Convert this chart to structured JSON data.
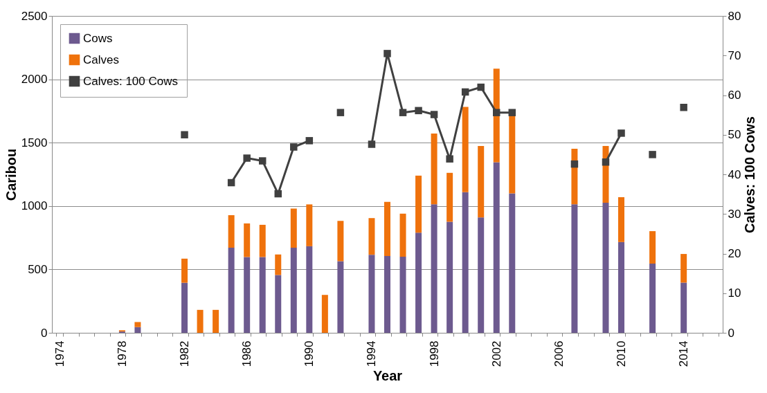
{
  "chart_data": {
    "type": "bar",
    "stacked": true,
    "xlabel": "Year",
    "ylabel": "Caribou",
    "y2label": "Calves: 100 Cows",
    "categories": [
      "1974",
      null,
      null,
      null,
      "1978",
      null,
      null,
      null,
      "1982",
      null,
      null,
      null,
      "1986",
      null,
      null,
      null,
      "1990",
      null,
      null,
      null,
      "1994",
      null,
      null,
      null,
      "1998",
      null,
      null,
      null,
      "2002",
      null,
      null,
      null,
      "2006",
      null,
      null,
      null,
      "2010",
      null,
      null,
      null,
      "2014",
      null,
      null
    ],
    "series": [
      {
        "name": "Cows",
        "color": "#6d5a8f",
        "values": [
          null,
          null,
          null,
          null,
          10,
          45,
          null,
          null,
          395,
          null,
          null,
          671,
          598,
          598,
          456,
          671,
          683,
          null,
          565,
          null,
          616,
          606,
          600,
          790,
          1014,
          876,
          1110,
          910,
          1346,
          1100,
          null,
          null,
          null,
          1014,
          null,
          1026,
          716,
          null,
          546,
          null,
          396,
          null,
          null
        ]
      },
      {
        "name": "Calves",
        "color": "#ef720c",
        "values": [
          null,
          null,
          null,
          null,
          10,
          40,
          null,
          null,
          190,
          181,
          181,
          257,
          265,
          254,
          162,
          309,
          330,
          299,
          318,
          null,
          289,
          427,
          340,
          450,
          558,
          386,
          672,
          564,
          738,
          620,
          null,
          null,
          null,
          438,
          null,
          448,
          354,
          null,
          256,
          null,
          226,
          null,
          null
        ]
      },
      {
        "name": "Calves: 100 Cows",
        "type": "line",
        "axis": "y2",
        "color": "#404040",
        "marker": "square",
        "line_style": "solid",
        "values": [
          null,
          null,
          null,
          null,
          null,
          null,
          null,
          null,
          50.0,
          null,
          null,
          37.9,
          44.1,
          43.4,
          35.1,
          46.9,
          48.5,
          null,
          55.6,
          null,
          47.6,
          70.5,
          55.6,
          56.1,
          55.1,
          43.9,
          60.8,
          62.0,
          55.6,
          55.6,
          null,
          null,
          null,
          42.6,
          null,
          43.1,
          50.4,
          null,
          45.0,
          null,
          56.9,
          null,
          null
        ]
      }
    ],
    "ylim": [
      0,
      2500
    ],
    "yticks": [
      0,
      500,
      1000,
      1500,
      2000,
      2500
    ],
    "y2lim": [
      0,
      80
    ],
    "y2ticks": [
      0,
      10,
      20,
      30,
      40,
      50,
      60,
      70,
      80
    ],
    "grid": "y",
    "legend": "top left"
  }
}
